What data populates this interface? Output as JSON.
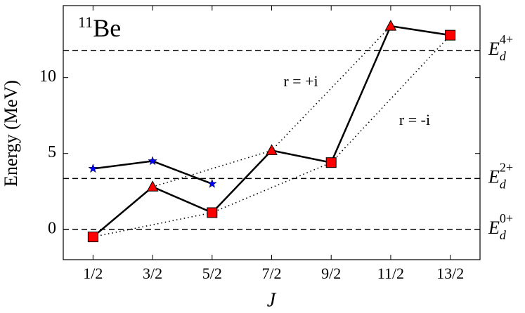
{
  "chart_data": {
    "type": "line",
    "title": {
      "sup": "11",
      "text": "Be"
    },
    "y_label": "Energy (MeV)",
    "x_label": "J",
    "xlim": [
      0,
      7
    ],
    "xticks": [
      {
        "value": 0.5,
        "label": "1/2"
      },
      {
        "value": 1.5,
        "label": "3/2"
      },
      {
        "value": 2.5,
        "label": "5/2"
      },
      {
        "value": 3.5,
        "label": "7/2"
      },
      {
        "value": 4.5,
        "label": "9/2"
      },
      {
        "value": 5.5,
        "label": "11/2"
      },
      {
        "value": 6.5,
        "label": "13/2"
      }
    ],
    "ylim": [
      -2,
      14.75
    ],
    "yticks": [
      0,
      5,
      10
    ],
    "grid": false,
    "reference_lines": [
      {
        "y": 0,
        "label": "E",
        "sub": "d",
        "sup": "0+"
      },
      {
        "y": 3.35,
        "label": "E",
        "sub": "d",
        "sup": "2+"
      },
      {
        "y": 11.8,
        "label": "E",
        "sub": "d",
        "sup": "4+"
      }
    ],
    "series": [
      {
        "name": "r = +i",
        "x": [
          0.5,
          1.5,
          3.5,
          5.5
        ],
        "values": [
          -0.5,
          2.8,
          5.2,
          13.4
        ],
        "color": "#000000",
        "line": "dotted"
      },
      {
        "name": "r = -i",
        "x": [
          0.5,
          2.5,
          4.5,
          6.5
        ],
        "values": [
          -0.5,
          1.1,
          4.4,
          12.8
        ],
        "color": "#000000",
        "line": "dotted"
      },
      {
        "x": [
          0.5,
          1.5,
          2.5,
          3.5,
          4.5,
          5.5,
          6.5
        ],
        "values": [
          -0.5,
          2.8,
          1.1,
          5.2,
          4.4,
          13.4,
          12.8
        ],
        "color": "#000000",
        "line": "solid",
        "markers": [
          "square",
          "triangle",
          "square",
          "triangle",
          "square",
          "triangle",
          "square"
        ],
        "marker_color": "#ff0000"
      },
      {
        "x": [
          0.5,
          1.5,
          2.5
        ],
        "values": [
          4.0,
          4.5,
          3.0
        ],
        "color": "#000000",
        "line": "solid",
        "markers": [
          "star",
          "star",
          "star"
        ],
        "marker_color": "#0000ff"
      }
    ]
  }
}
